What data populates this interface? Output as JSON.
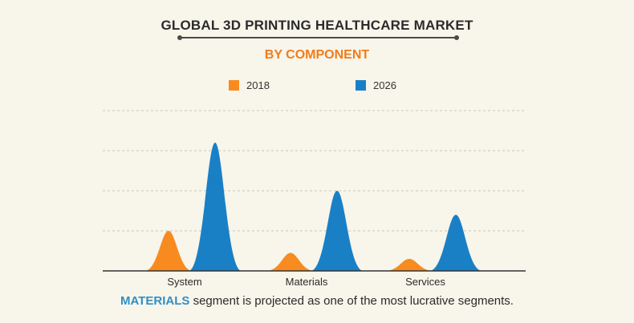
{
  "chart_data": {
    "type": "area",
    "title": "GLOBAL 3D PRINTING HEALTHCARE MARKET",
    "subtitle": "BY COMPONENT",
    "categories": [
      "System",
      "Materials",
      "Services"
    ],
    "series": [
      {
        "name": "2018",
        "color": "#f88b1f",
        "values": [
          1.0,
          0.45,
          0.3
        ]
      },
      {
        "name": "2026",
        "color": "#1a80c6",
        "values": [
          3.2,
          2.0,
          1.4
        ]
      }
    ],
    "ylim": [
      0,
      4
    ],
    "grid": true,
    "legend_position": "top-center"
  },
  "footer": {
    "highlight": "MATERIALS",
    "text": " segment is projected as one of the most lucrative segments."
  }
}
